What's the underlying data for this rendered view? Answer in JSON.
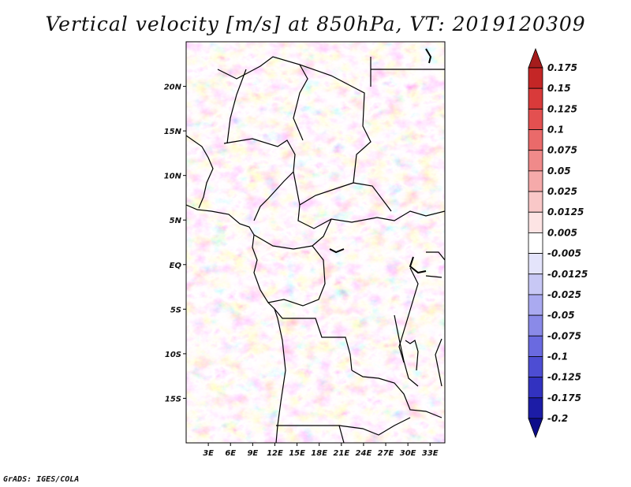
{
  "title": "Vertical velocity [m/s] at 850hPa, VT: 2019120309",
  "footer": "GrADS: IGES/COLA",
  "map": {
    "x_ticks": [
      {
        "value": 3,
        "label": "3E"
      },
      {
        "value": 6,
        "label": "6E"
      },
      {
        "value": 9,
        "label": "9E"
      },
      {
        "value": 12,
        "label": "12E"
      },
      {
        "value": 15,
        "label": "15E"
      },
      {
        "value": 18,
        "label": "18E"
      },
      {
        "value": 21,
        "label": "21E"
      },
      {
        "value": 24,
        "label": "24E"
      },
      {
        "value": 27,
        "label": "27E"
      },
      {
        "value": 30,
        "label": "30E"
      },
      {
        "value": 33,
        "label": "33E"
      }
    ],
    "y_ticks": [
      {
        "value": 20,
        "label": "20N"
      },
      {
        "value": 15,
        "label": "15N"
      },
      {
        "value": 10,
        "label": "10N"
      },
      {
        "value": 5,
        "label": "5N"
      },
      {
        "value": 0,
        "label": "EQ"
      },
      {
        "value": -5,
        "label": "5S"
      },
      {
        "value": -10,
        "label": "10S"
      },
      {
        "value": -15,
        "label": "15S"
      }
    ],
    "lon_range": [
      0,
      35
    ],
    "lat_range": [
      -20,
      25
    ]
  },
  "colorbar": {
    "levels": [
      "0.175",
      "0.15",
      "0.125",
      "0.1",
      "0.075",
      "0.05",
      "0.025",
      "0.0125",
      "0.005",
      "-0.005",
      "-0.0125",
      "-0.025",
      "-0.05",
      "-0.075",
      "-0.1",
      "-0.125",
      "-0.175",
      "-0.2"
    ],
    "colors": [
      "#a51c1c",
      "#c42626",
      "#d93a3a",
      "#e35050",
      "#ea6a6a",
      "#f08a8a",
      "#f5aaaa",
      "#f9c8c8",
      "#fde4e4",
      "#ffffff",
      "#e4e4fb",
      "#c8c8f5",
      "#aaaaf0",
      "#8a8ae8",
      "#6a6ae0",
      "#4d4dd3",
      "#3232c0",
      "#1c1ca6",
      "#0d0d8a"
    ]
  }
}
